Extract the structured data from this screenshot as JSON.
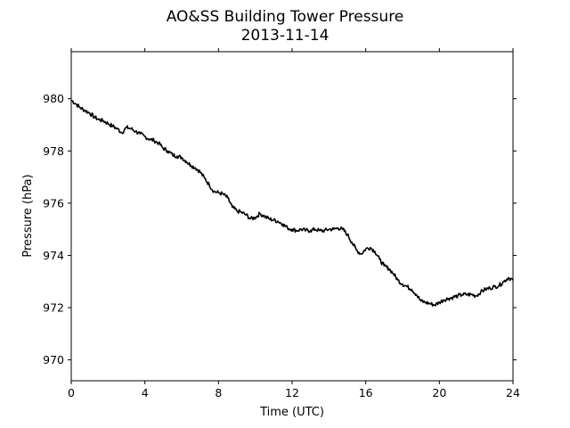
{
  "chart_data": {
    "type": "line",
    "title": "AO&SS Building Tower Pressure",
    "subtitle": "2013-11-14",
    "xlabel": "Time (UTC)",
    "ylabel": "Pressure (hPa)",
    "xlim": [
      0,
      24
    ],
    "ylim": [
      969.2,
      981.8
    ],
    "xticks": [
      0,
      4,
      8,
      12,
      16,
      20,
      24
    ],
    "yticks": [
      970,
      972,
      974,
      976,
      978,
      980
    ],
    "grid": false,
    "legend": false,
    "line_color": "#000000",
    "series": [
      {
        "x": [
          0,
          0.25,
          0.5,
          0.75,
          1.0,
          1.25,
          1.5,
          1.75,
          2.0,
          2.25,
          2.5,
          2.75,
          3.0,
          3.25,
          3.5,
          3.75,
          4.0,
          4.25,
          4.5,
          4.75,
          5.0,
          5.25,
          5.5,
          5.75,
          6.0,
          6.25,
          6.5,
          6.75,
          7.0,
          7.25,
          7.5,
          7.75,
          8.0,
          8.25,
          8.5,
          8.75,
          9.0,
          9.25,
          9.5,
          9.75,
          10.0,
          10.25,
          10.5,
          10.75,
          11.0,
          11.25,
          11.5,
          11.75,
          12.0,
          12.25,
          12.5,
          12.75,
          13.0,
          13.25,
          13.5,
          13.75,
          14.0,
          14.25,
          14.5,
          14.75,
          15.0,
          15.25,
          15.5,
          15.75,
          16.0,
          16.25,
          16.5,
          16.75,
          17.0,
          17.25,
          17.5,
          17.75,
          18.0,
          18.25,
          18.5,
          18.75,
          19.0,
          19.25,
          19.5,
          19.75,
          20.0,
          20.25,
          20.5,
          20.75,
          21.0,
          21.25,
          21.5,
          21.75,
          22.0,
          22.25,
          22.5,
          22.75,
          23.0,
          23.25,
          23.5,
          23.75,
          24.0
        ],
        "y": [
          979.95,
          979.8,
          979.65,
          979.55,
          979.45,
          979.3,
          979.2,
          979.15,
          979.05,
          978.95,
          978.85,
          978.7,
          978.9,
          978.85,
          978.75,
          978.65,
          978.55,
          978.45,
          978.4,
          978.3,
          978.1,
          978.0,
          977.85,
          977.8,
          977.75,
          977.6,
          977.45,
          977.35,
          977.2,
          976.95,
          976.7,
          976.45,
          976.4,
          976.35,
          976.2,
          975.85,
          975.7,
          975.65,
          975.55,
          975.4,
          975.45,
          975.6,
          975.5,
          975.4,
          975.35,
          975.3,
          975.2,
          975.05,
          975.0,
          974.95,
          975.0,
          974.95,
          974.95,
          975.0,
          974.95,
          974.95,
          975.0,
          975.0,
          975.05,
          975.0,
          974.8,
          974.5,
          974.2,
          974.05,
          974.25,
          974.3,
          974.15,
          973.85,
          973.6,
          973.5,
          973.3,
          973.05,
          972.9,
          972.8,
          972.7,
          972.5,
          972.25,
          972.2,
          972.15,
          972.1,
          972.2,
          972.3,
          972.35,
          972.4,
          972.45,
          972.5,
          972.5,
          972.5,
          972.45,
          972.6,
          972.7,
          972.75,
          972.8,
          972.85,
          973.0,
          973.15,
          973.05
        ]
      }
    ]
  }
}
